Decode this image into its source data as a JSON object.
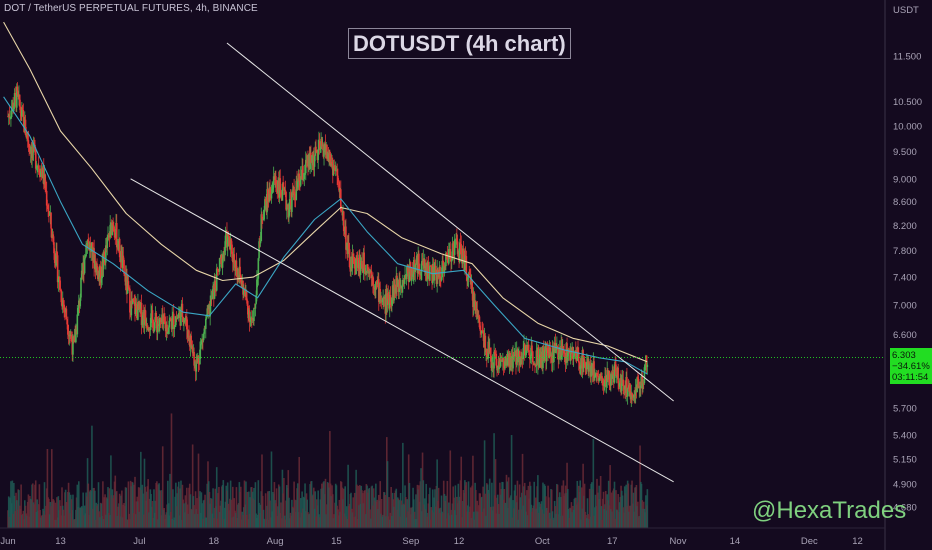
{
  "header": {
    "symbol_line": "DOT / TetherUS PERPETUAL FUTURES, 4h, BINANCE",
    "title": "DOTUSDT (4h chart)",
    "watermark": "@HexaTrades"
  },
  "price_scale": {
    "currency": "USDT",
    "ticks": [
      "11.500",
      "10.500",
      "10.000",
      "9.500",
      "9.000",
      "8.600",
      "8.200",
      "7.800",
      "7.400",
      "7.000",
      "6.600",
      "5.700",
      "5.400",
      "5.150",
      "4.900",
      "4.680"
    ]
  },
  "last_price": {
    "price": "6.303",
    "change": "−34.61%",
    "countdown": "03:11:54"
  },
  "time_scale": {
    "ticks": [
      "Jun",
      "13",
      "Jul",
      "18",
      "Aug",
      "15",
      "Sep",
      "12",
      "Oct",
      "17",
      "Nov",
      "14",
      "Dec",
      "12"
    ]
  },
  "colors": {
    "background": "#140a1f",
    "up": "#26a69a",
    "down": "#ef5350",
    "candle_up": "#4caf50",
    "candle_down": "#e53935",
    "ma_fast": "#3aa6c4",
    "ma_slow": "#e8d6a8",
    "trendline": "#e6e6e6",
    "last_price": "#22dd22"
  },
  "chart_data": {
    "type": "candlestick",
    "symbol": "DOTUSDT",
    "interval": "4h",
    "price_axis_scale": "log",
    "price_range": [
      4.55,
      12.5
    ],
    "price_path": [
      {
        "x": "Jun 1",
        "y": 10.2
      },
      {
        "x": "Jun 3",
        "y": 10.6
      },
      {
        "x": "Jun 6",
        "y": 9.6
      },
      {
        "x": "Jun 9",
        "y": 9.1
      },
      {
        "x": "Jun 13",
        "y": 7.2
      },
      {
        "x": "Jun 16",
        "y": 6.4
      },
      {
        "x": "Jun 19",
        "y": 8.0
      },
      {
        "x": "Jun 22",
        "y": 7.4
      },
      {
        "x": "Jun 25",
        "y": 8.3
      },
      {
        "x": "Jun 29",
        "y": 7.0
      },
      {
        "x": "Jul 3",
        "y": 6.8
      },
      {
        "x": "Jul 7",
        "y": 6.7
      },
      {
        "x": "Jul 11",
        "y": 6.9
      },
      {
        "x": "Jul 14",
        "y": 6.2
      },
      {
        "x": "Jul 18",
        "y": 7.2
      },
      {
        "x": "Jul 21",
        "y": 8.0
      },
      {
        "x": "Jul 24",
        "y": 7.4
      },
      {
        "x": "Jul 27",
        "y": 6.7
      },
      {
        "x": "Jul 29",
        "y": 8.4
      },
      {
        "x": "Aug 1",
        "y": 9.0
      },
      {
        "x": "Aug 4",
        "y": 8.5
      },
      {
        "x": "Aug 8",
        "y": 9.2
      },
      {
        "x": "Aug 12",
        "y": 9.6
      },
      {
        "x": "Aug 15",
        "y": 9.1
      },
      {
        "x": "Aug 18",
        "y": 7.6
      },
      {
        "x": "Aug 22",
        "y": 7.6
      },
      {
        "x": "Aug 26",
        "y": 7.0
      },
      {
        "x": "Aug 30",
        "y": 7.4
      },
      {
        "x": "Sep 3",
        "y": 7.6
      },
      {
        "x": "Sep 7",
        "y": 7.4
      },
      {
        "x": "Sep 11",
        "y": 7.9
      },
      {
        "x": "Sep 13",
        "y": 7.7
      },
      {
        "x": "Sep 16",
        "y": 6.9
      },
      {
        "x": "Sep 19",
        "y": 6.3
      },
      {
        "x": "Sep 23",
        "y": 6.2
      },
      {
        "x": "Sep 27",
        "y": 6.4
      },
      {
        "x": "Oct 1",
        "y": 6.3
      },
      {
        "x": "Oct 5",
        "y": 6.4
      },
      {
        "x": "Oct 9",
        "y": 6.3
      },
      {
        "x": "Oct 12",
        "y": 6.2
      },
      {
        "x": "Oct 15",
        "y": 6.0
      },
      {
        "x": "Oct 18",
        "y": 6.1
      },
      {
        "x": "Oct 21",
        "y": 5.9
      },
      {
        "x": "Oct 24",
        "y": 6.0
      },
      {
        "x": "Oct 25",
        "y": 6.303
      }
    ],
    "ma_fast": [
      {
        "x": "May 31",
        "y": 10.6
      },
      {
        "x": "Jun 6",
        "y": 9.8
      },
      {
        "x": "Jun 13",
        "y": 8.6
      },
      {
        "x": "Jun 18",
        "y": 7.9
      },
      {
        "x": "Jun 25",
        "y": 7.6
      },
      {
        "x": "Jul 3",
        "y": 7.2
      },
      {
        "x": "Jul 11",
        "y": 6.9
      },
      {
        "x": "Jul 17",
        "y": 6.85
      },
      {
        "x": "Jul 23",
        "y": 7.3
      },
      {
        "x": "Jul 28",
        "y": 7.1
      },
      {
        "x": "Aug 3",
        "y": 7.7
      },
      {
        "x": "Aug 10",
        "y": 8.3
      },
      {
        "x": "Aug 16",
        "y": 8.65
      },
      {
        "x": "Aug 22",
        "y": 8.1
      },
      {
        "x": "Aug 29",
        "y": 7.6
      },
      {
        "x": "Sep 6",
        "y": 7.45
      },
      {
        "x": "Sep 13",
        "y": 7.5
      },
      {
        "x": "Sep 20",
        "y": 7.0
      },
      {
        "x": "Sep 27",
        "y": 6.55
      },
      {
        "x": "Oct 6",
        "y": 6.4
      },
      {
        "x": "Oct 14",
        "y": 6.3
      },
      {
        "x": "Oct 20",
        "y": 6.25
      },
      {
        "x": "Oct 25",
        "y": 6.1
      }
    ],
    "ma_slow": [
      {
        "x": "May 31",
        "y": 12.3
      },
      {
        "x": "Jun 6",
        "y": 11.2
      },
      {
        "x": "Jun 13",
        "y": 9.9
      },
      {
        "x": "Jun 20",
        "y": 9.2
      },
      {
        "x": "Jun 28",
        "y": 8.4
      },
      {
        "x": "Jul 6",
        "y": 7.9
      },
      {
        "x": "Jul 14",
        "y": 7.5
      },
      {
        "x": "Jul 20",
        "y": 7.35
      },
      {
        "x": "Jul 27",
        "y": 7.4
      },
      {
        "x": "Aug 3",
        "y": 7.65
      },
      {
        "x": "Aug 10",
        "y": 8.1
      },
      {
        "x": "Aug 16",
        "y": 8.5
      },
      {
        "x": "Aug 22",
        "y": 8.4
      },
      {
        "x": "Aug 30",
        "y": 8.0
      },
      {
        "x": "Sep 8",
        "y": 7.75
      },
      {
        "x": "Sep 15",
        "y": 7.6
      },
      {
        "x": "Sep 22",
        "y": 7.1
      },
      {
        "x": "Sep 30",
        "y": 6.75
      },
      {
        "x": "Oct 8",
        "y": 6.55
      },
      {
        "x": "Oct 16",
        "y": 6.45
      },
      {
        "x": "Oct 25",
        "y": 6.25
      }
    ],
    "trendlines": [
      {
        "name": "channel-upper",
        "from": {
          "x": "Jul 21",
          "y": 11.8
        },
        "to": {
          "x": "Oct 31",
          "y": 5.78
        }
      },
      {
        "name": "channel-lower",
        "from": {
          "x": "Jun 29",
          "y": 9.0
        },
        "to": {
          "x": "Oct 31",
          "y": 4.92
        }
      }
    ],
    "last_price": 6.303,
    "change_pct": -34.61
  }
}
